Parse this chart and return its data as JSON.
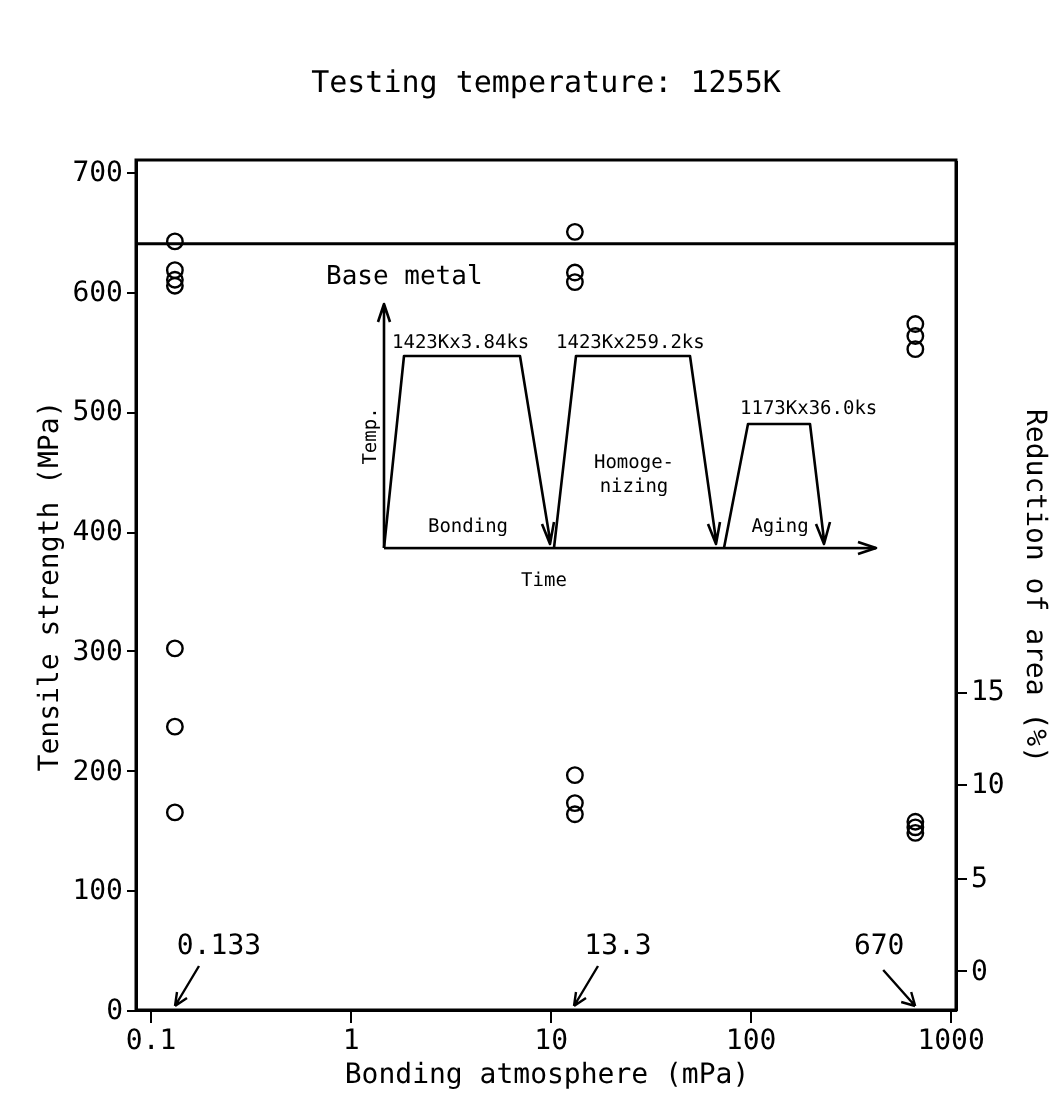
{
  "chart_data": {
    "type": "scatter",
    "title": "Testing temperature: 1255K",
    "xlabel": "Bonding atmosphere (mPa)",
    "ylabel": "Tensile strength (MPa)",
    "y2label": "Reduction of area (%)",
    "log": "x",
    "xlim": [
      0.085,
      1070
    ],
    "xticks": [
      0.1,
      1,
      10,
      100,
      1000
    ],
    "ylim": [
      0,
      710
    ],
    "yticks": [
      0,
      100,
      200,
      300,
      400,
      500,
      600,
      700
    ],
    "y2lim": [
      -2.1,
      43.5
    ],
    "y2ticks": [
      0,
      5,
      10,
      15
    ],
    "marker": "circle",
    "series": [
      {
        "color": "#000000",
        "x": [
          0.133,
          0.133,
          0.133,
          0.133,
          13.3,
          13.3,
          13.3,
          670,
          670,
          670
        ],
        "values": [
          642,
          618,
          610,
          605,
          650,
          616,
          608,
          573,
          563,
          552
        ]
      },
      {
        "color": "#000000",
        "axis": "y2",
        "x": [
          0.133,
          0.133,
          0.133,
          13.3,
          13.3,
          13.3,
          670,
          670,
          670
        ],
        "values": [
          17.3,
          13.1,
          8.5,
          10.5,
          9.0,
          8.4,
          8.0,
          7.7,
          7.4
        ]
      }
    ],
    "ref_lines": [
      {
        "axis": "y",
        "value": 640,
        "label": "Base metal",
        "color": "#000000"
      }
    ],
    "annotations": [
      "0.133",
      "13.3",
      "670",
      "1423Kx3.84ks",
      "1423Kx259.2ks",
      "1173Kx36.0ks",
      "Temp.",
      "Time",
      "Bonding",
      "Homoge-nizing",
      "Aging"
    ]
  }
}
